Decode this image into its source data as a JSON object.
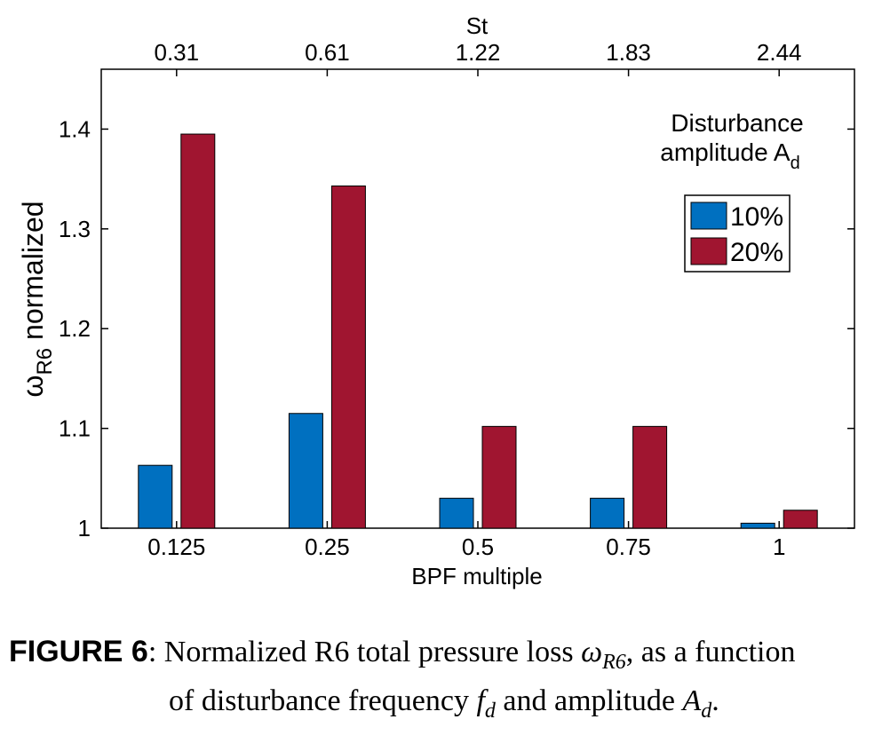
{
  "chart_data": {
    "type": "bar",
    "categories": [
      "0.125",
      "0.25",
      "0.5",
      "0.75",
      "1"
    ],
    "top_categories": [
      "0.31",
      "0.61",
      "1.22",
      "1.83",
      "2.44"
    ],
    "series": [
      {
        "name": "10%",
        "color": "#0070C0",
        "values": [
          1.063,
          1.115,
          1.03,
          1.03,
          1.005
        ]
      },
      {
        "name": "20%",
        "color": "#A01530",
        "values": [
          1.395,
          1.343,
          1.102,
          1.102,
          1.018
        ]
      }
    ],
    "xlabel": "BPF multiple",
    "xlabel_top": "St",
    "ylabel_main": "ω",
    "ylabel_sub": "R6",
    "ylabel_rest": " normalized",
    "ylim": [
      1.0,
      1.46
    ],
    "yticks": [
      "1",
      "1.1",
      "1.2",
      "1.3",
      "1.4"
    ],
    "legend_title_line1": "Disturbance",
    "legend_title_line2": "amplitude A",
    "legend_title_sub": "d",
    "legend_position": "top-right"
  },
  "caption": {
    "label": "FIGURE 6",
    "sep": ":",
    "t1": " Normalized R6 total pressure loss ",
    "sym1": "ω",
    "sym1_sub": "R6",
    "t2": ", as a function",
    "t3": "of disturbance frequency ",
    "sym2": "f",
    "sym2_sub": "d",
    "t4": " and amplitude ",
    "sym3": "A",
    "sym3_sub": "d",
    "t5": "."
  }
}
